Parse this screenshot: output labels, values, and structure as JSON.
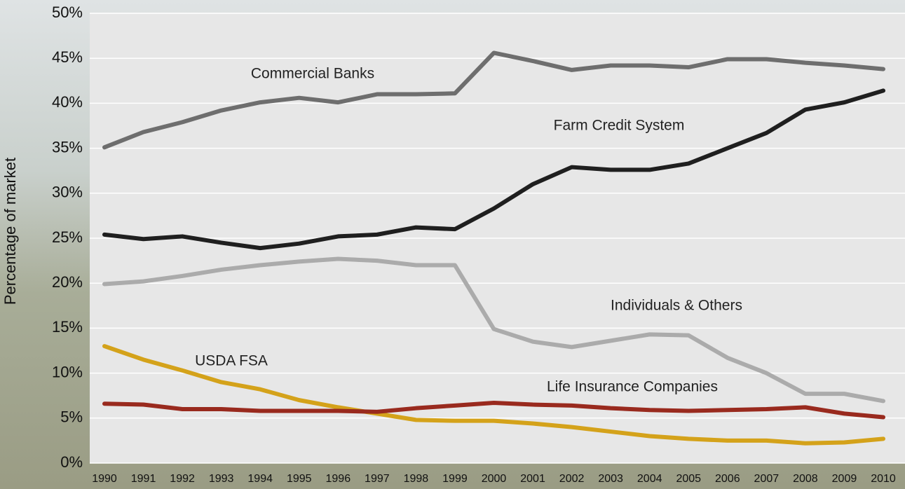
{
  "chart_data": {
    "type": "line",
    "y_label": "Percentage of market",
    "categories": [
      "1990",
      "1991",
      "1992",
      "1993",
      "1994",
      "1995",
      "1996",
      "1997",
      "1998",
      "1999",
      "2000",
      "2001",
      "2002",
      "2003",
      "2004",
      "2005",
      "2006",
      "2007",
      "2008",
      "2009",
      "2010"
    ],
    "ylim": [
      0,
      50
    ],
    "yticks": [
      {
        "value": 0,
        "label": "0%"
      },
      {
        "value": 5,
        "label": "5%"
      },
      {
        "value": 10,
        "label": "10%"
      },
      {
        "value": 15,
        "label": "15%"
      },
      {
        "value": 20,
        "label": "20%"
      },
      {
        "value": 25,
        "label": "25%"
      },
      {
        "value": 30,
        "label": "30%"
      },
      {
        "value": 35,
        "label": "35%"
      },
      {
        "value": 40,
        "label": "40%"
      },
      {
        "value": 45,
        "label": "45%"
      },
      {
        "value": 50,
        "label": "50%"
      }
    ],
    "grid": true,
    "series": [
      {
        "name": "Commercial Banks",
        "color": "#6e6e6e",
        "values": [
          35.1,
          36.8,
          37.9,
          39.2,
          40.1,
          40.6,
          40.1,
          41.0,
          41.0,
          41.1,
          45.6,
          44.7,
          43.7,
          44.2,
          44.2,
          44.0,
          44.9,
          44.9,
          44.5,
          44.2,
          43.8
        ]
      },
      {
        "name": "Farm Credit System",
        "color": "#1f1f1f",
        "values": [
          25.4,
          24.9,
          25.2,
          24.5,
          23.9,
          24.4,
          25.2,
          25.4,
          26.2,
          26.0,
          28.3,
          31.0,
          32.9,
          32.6,
          32.6,
          33.3,
          35.0,
          36.7,
          39.3,
          40.1,
          41.4
        ]
      },
      {
        "name": "Individuals & Others",
        "color": "#ababab",
        "values": [
          19.9,
          20.2,
          20.8,
          21.5,
          22.0,
          22.4,
          22.7,
          22.5,
          22.0,
          22.0,
          14.9,
          13.5,
          12.9,
          13.6,
          14.3,
          14.2,
          11.7,
          10.0,
          7.7,
          7.7,
          6.9
        ]
      },
      {
        "name": "USDA FSA",
        "color": "#d4a21a",
        "values": [
          13.0,
          11.5,
          10.3,
          9.0,
          8.2,
          7.0,
          6.2,
          5.5,
          4.8,
          4.7,
          4.7,
          4.4,
          4.0,
          3.5,
          3.0,
          2.7,
          2.5,
          2.5,
          2.2,
          2.3,
          2.7
        ]
      },
      {
        "name": "Life Insurance Companies",
        "color": "#992a1e",
        "values": [
          6.6,
          6.5,
          6.0,
          6.0,
          5.8,
          5.8,
          5.8,
          5.7,
          6.1,
          6.4,
          6.7,
          6.5,
          6.4,
          6.1,
          5.9,
          5.8,
          5.9,
          6.0,
          6.2,
          5.5,
          5.1
        ]
      }
    ]
  }
}
